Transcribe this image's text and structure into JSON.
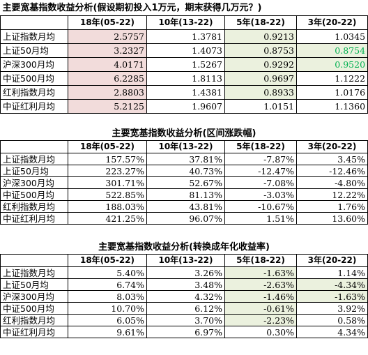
{
  "tables": [
    {
      "title": "主要宽基指数收益分析(假设期初投入1万元，期末获得几万元？)",
      "headers": [
        "",
        "18年(05-22)",
        "10年(13-22)",
        "5年(18-22)",
        "3年(20-22)"
      ],
      "rows": [
        {
          "label": "上证指数月均",
          "values": [
            "2.5757",
            "1.3781",
            "0.9213",
            "1.0345"
          ]
        },
        {
          "label": "上证50月均",
          "values": [
            "3.2327",
            "1.4073",
            "0.8753",
            "0.8754"
          ]
        },
        {
          "label": "沪深300月均",
          "values": [
            "4.0171",
            "1.5267",
            "0.9292",
            "0.9520"
          ]
        },
        {
          "label": "中证500月均",
          "values": [
            "6.2285",
            "1.8113",
            "0.9697",
            "1.1222"
          ]
        },
        {
          "label": "红利指数月均",
          "values": [
            "2.8803",
            "1.4381",
            "0.8933",
            "1.0176"
          ]
        },
        {
          "label": "中证红利月均",
          "values": [
            "5.2125",
            "1.9607",
            "1.0151",
            "1.1360"
          ]
        }
      ]
    },
    {
      "title": "主要宽基指数收益分析(区间涨跌幅)",
      "headers": [
        "",
        "18年(05-22)",
        "10年(13-22)",
        "5年(18-22)",
        "3年(20-22)"
      ],
      "rows": [
        {
          "label": "上证指数月均",
          "values": [
            "157.57%",
            "37.81%",
            "-7.87%",
            "3.45%"
          ]
        },
        {
          "label": "上证50月均",
          "values": [
            "223.27%",
            "40.73%",
            "-12.47%",
            "-12.46%"
          ]
        },
        {
          "label": "沪深300月均",
          "values": [
            "301.71%",
            "52.67%",
            "-7.08%",
            "-4.80%"
          ]
        },
        {
          "label": "中证500月均",
          "values": [
            "522.85%",
            "81.13%",
            "-3.03%",
            "12.22%"
          ]
        },
        {
          "label": "红利指数月均",
          "values": [
            "188.03%",
            "43.81%",
            "-10.67%",
            "1.76%"
          ]
        },
        {
          "label": "中证红利月均",
          "values": [
            "421.25%",
            "96.07%",
            "1.51%",
            "13.60%"
          ]
        }
      ]
    },
    {
      "title": "主要宽基指数收益分析(转换成年化收益率)",
      "headers": [
        "",
        "18年(05-22)",
        "10年(13-22)",
        "5年(18-22)",
        "3年(20-22)"
      ],
      "rows": [
        {
          "label": "上证指数月均",
          "values": [
            "5.40%",
            "3.26%",
            "-1.63%",
            "1.14%"
          ]
        },
        {
          "label": "上证50月均",
          "values": [
            "6.74%",
            "3.48%",
            "-2.63%",
            "-4.34%"
          ]
        },
        {
          "label": "沪深300月均",
          "values": [
            "8.03%",
            "4.32%",
            "-1.46%",
            "-1.63%"
          ]
        },
        {
          "label": "中证500月均",
          "values": [
            "10.70%",
            "6.12%",
            "-0.61%",
            "3.92%"
          ]
        },
        {
          "label": "红利指数月均",
          "values": [
            "6.05%",
            "3.70%",
            "-2.23%",
            "0.58%"
          ]
        },
        {
          "label": "中证红利月均",
          "values": [
            "9.61%",
            "6.97%",
            "0.30%",
            "4.34%"
          ]
        }
      ]
    }
  ],
  "colors": {
    "highlight_pink": "#f2dcdb",
    "highlight_green": "#ebf1de",
    "text_green": "#00b050"
  }
}
